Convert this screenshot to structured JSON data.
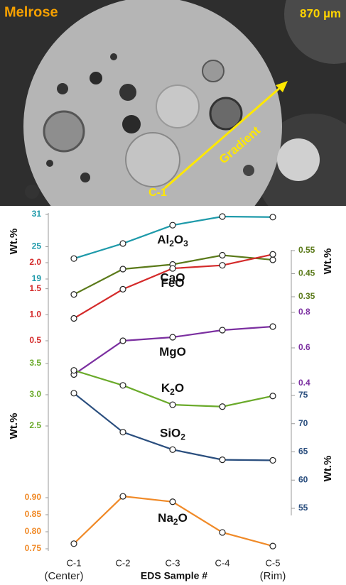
{
  "image": {
    "title": "Melrose",
    "scale": "870 µm",
    "arrow_label": "Gradient",
    "start_label": "C-1"
  },
  "chart_data": {
    "type": "line",
    "categories": [
      "C-1",
      "C-2",
      "C-3",
      "C-4",
      "C-5"
    ],
    "category_sublabels": [
      "(Center)",
      null,
      null,
      null,
      "(Rim)"
    ],
    "xlabel": "EDS Sample #",
    "axis_titles": [
      "Wt.%",
      "Wt.%",
      "Wt.%",
      "Wt.%"
    ],
    "series": [
      {
        "name": "Al2O3",
        "color": "#1e9aaa",
        "side": "left",
        "ylim": [
          19,
          31
        ],
        "yticks": [
          19,
          25,
          31
        ],
        "values": [
          22.8,
          25.6,
          29.0,
          30.6,
          30.5
        ]
      },
      {
        "name": "CaO",
        "color": "#5b7a1a",
        "side": "right",
        "ylim": [
          0.35,
          0.55
        ],
        "yticks": [
          0.35,
          0.45,
          0.55
        ],
        "values": [
          0.36,
          0.47,
          0.49,
          0.53,
          0.51
        ]
      },
      {
        "name": "FeO",
        "color": "#d42a2a",
        "side": "left",
        "ylim": [
          0.5,
          2.0
        ],
        "yticks": [
          0.5,
          {
            "value": 1.0,
            "label": "1.0"
          },
          1.5,
          {
            "value": 2.0,
            "label": "2.0"
          }
        ],
        "values": [
          0.93,
          1.49,
          1.89,
          1.95,
          2.16
        ]
      },
      {
        "name": "MgO",
        "color": "#7b2fa0",
        "side": "right",
        "ylim": [
          0.4,
          0.8
        ],
        "yticks": [
          0.4,
          0.6,
          0.8
        ],
        "values": [
          0.45,
          0.64,
          0.66,
          0.7,
          0.72
        ]
      },
      {
        "name": "K2O",
        "color": "#6aaa2a",
        "side": "left",
        "ylim": [
          2.5,
          3.5
        ],
        "yticks": [
          2.5,
          {
            "value": 3.0,
            "label": "3.0"
          },
          3.5
        ],
        "values": [
          3.39,
          3.15,
          2.84,
          2.81,
          2.98
        ]
      },
      {
        "name": "SiO2",
        "color": "#2a4e7e",
        "side": "right",
        "ylim": [
          55,
          75
        ],
        "yticks": [
          55,
          60,
          65,
          70,
          75
        ],
        "values": [
          75.4,
          68.5,
          65.4,
          63.6,
          63.5
        ]
      },
      {
        "name": "Na2O",
        "color": "#f08a28",
        "side": "left",
        "ylim": [
          0.75,
          0.9
        ],
        "yticks": [
          0.75,
          {
            "value": 0.8,
            "label": "0.80"
          },
          0.85,
          {
            "value": 0.9,
            "label": "0.90"
          }
        ],
        "values": [
          0.765,
          0.904,
          0.888,
          0.798,
          0.758
        ]
      }
    ]
  }
}
